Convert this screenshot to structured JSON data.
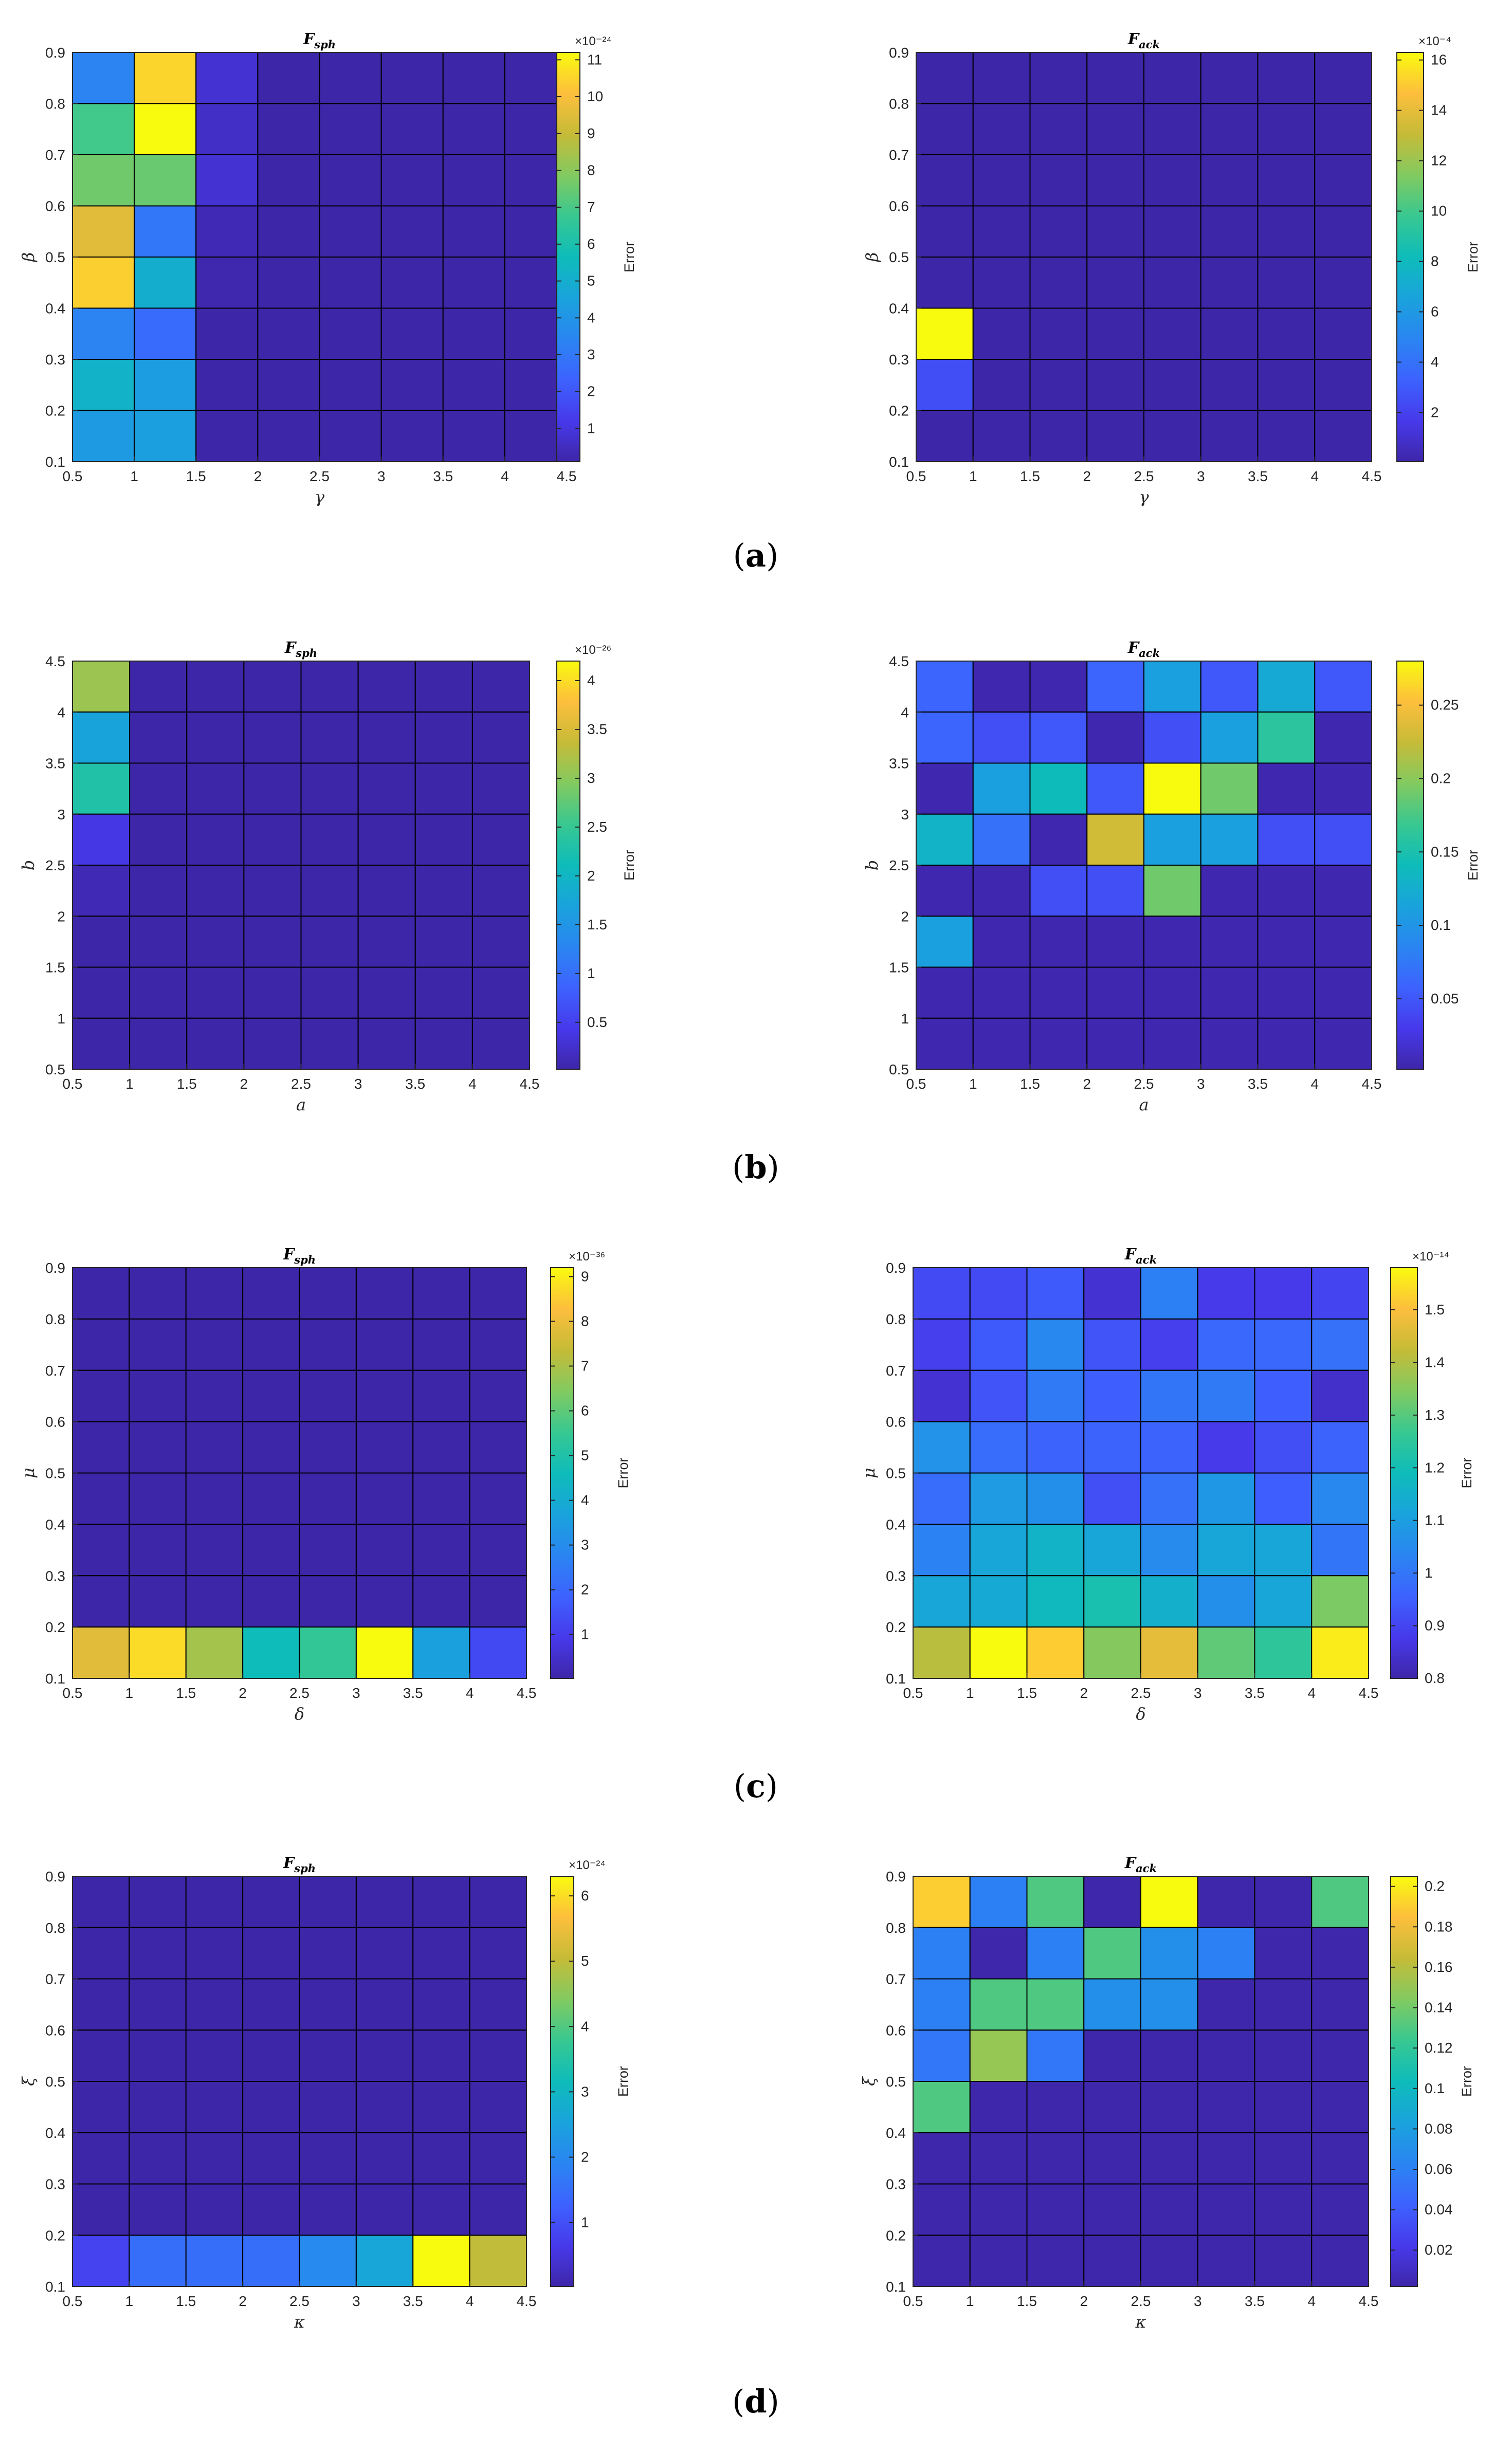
{
  "panels": [
    {
      "label": "(a)",
      "open": "(",
      "letter": "a",
      "close": ")"
    },
    {
      "label": "(b)",
      "open": "(",
      "letter": "b",
      "close": ")"
    },
    {
      "label": "(c)",
      "open": "(",
      "letter": "c",
      "close": ")"
    },
    {
      "label": "(d)",
      "open": "(",
      "letter": "d",
      "close": ")"
    }
  ],
  "colors": {
    "cell_edge": "#000000",
    "axis": "#262626",
    "low": "#3e26a8",
    "high": "#f9fb0e"
  },
  "chart_data": [
    {
      "id": "a-sph",
      "type": "heatmap",
      "title": "F",
      "title_sub": "sph",
      "xlabel": "γ",
      "ylabel": "β",
      "xticks": [
        "0.5",
        "1",
        "1.5",
        "2",
        "2.5",
        "3",
        "3.5",
        "4",
        "4.5"
      ],
      "yticks": [
        "0.1",
        "0.2",
        "0.3",
        "0.4",
        "0.5",
        "0.6",
        "0.7",
        "0.8",
        "0.9"
      ],
      "xlim": [
        0.5,
        4.5
      ],
      "ylim": [
        0.1,
        0.9
      ],
      "colorbar_label": "Error",
      "colorbar_exponent": "×10⁻²⁴",
      "colorbar_range": [
        0.1,
        11.2
      ],
      "colorbar_ticks": [
        "1",
        "2",
        "3",
        "4",
        "5",
        "6",
        "7",
        "8",
        "9",
        "10",
        "11"
      ],
      "colorbar_tick_values": [
        1,
        2,
        3,
        4,
        5,
        6,
        7,
        8,
        9,
        10,
        11
      ],
      "values_top_to_bottom": [
        [
          3.4,
          10.5,
          0.8,
          0.1,
          0.1,
          0.1,
          0.1,
          0.1
        ],
        [
          6.9,
          11.2,
          0.6,
          0.1,
          0.1,
          0.1,
          0.1,
          0.1
        ],
        [
          7.6,
          7.5,
          0.8,
          0.1,
          0.1,
          0.1,
          0.1,
          0.1
        ],
        [
          9.5,
          3.0,
          0.3,
          0.1,
          0.1,
          0.1,
          0.1,
          0.1
        ],
        [
          10.4,
          5.0,
          0.2,
          0.1,
          0.1,
          0.1,
          0.1,
          0.1
        ],
        [
          3.4,
          2.6,
          0.1,
          0.1,
          0.1,
          0.1,
          0.1,
          0.1
        ],
        [
          5.2,
          4.3,
          0.1,
          0.1,
          0.1,
          0.1,
          0.1,
          0.1
        ],
        [
          4.2,
          4.4,
          0.1,
          0.1,
          0.1,
          0.1,
          0.1,
          0.1
        ]
      ]
    },
    {
      "id": "a-ack",
      "type": "heatmap",
      "title": "F",
      "title_sub": "ack",
      "xlabel": "γ",
      "ylabel": "β",
      "xticks": [
        "0.5",
        "1",
        "1.5",
        "2",
        "2.5",
        "3",
        "3.5",
        "4",
        "4.5"
      ],
      "yticks": [
        "0.1",
        "0.2",
        "0.3",
        "0.4",
        "0.5",
        "0.6",
        "0.7",
        "0.8",
        "0.9"
      ],
      "xlim": [
        0.5,
        4.5
      ],
      "ylim": [
        0.1,
        0.9
      ],
      "colorbar_label": "Error",
      "colorbar_exponent": "×10⁻⁴",
      "colorbar_range": [
        0.05,
        16.3
      ],
      "colorbar_ticks": [
        "2",
        "4",
        "6",
        "8",
        "10",
        "12",
        "14",
        "16"
      ],
      "colorbar_tick_values": [
        2,
        4,
        6,
        8,
        10,
        12,
        14,
        16
      ],
      "values_top_to_bottom": [
        [
          0.05,
          0.05,
          0.05,
          0.05,
          0.05,
          0.05,
          0.05,
          0.05
        ],
        [
          0.05,
          0.05,
          0.05,
          0.05,
          0.05,
          0.05,
          0.05,
          0.05
        ],
        [
          0.05,
          0.05,
          0.05,
          0.05,
          0.05,
          0.05,
          0.05,
          0.05
        ],
        [
          0.05,
          0.05,
          0.05,
          0.05,
          0.05,
          0.05,
          0.05,
          0.05
        ],
        [
          0.05,
          0.05,
          0.05,
          0.05,
          0.05,
          0.05,
          0.05,
          0.05
        ],
        [
          16.3,
          0.05,
          0.05,
          0.05,
          0.05,
          0.05,
          0.05,
          0.05
        ],
        [
          2.5,
          0.05,
          0.05,
          0.05,
          0.05,
          0.05,
          0.05,
          0.05
        ],
        [
          0.05,
          0.05,
          0.05,
          0.05,
          0.05,
          0.05,
          0.05,
          0.05
        ]
      ]
    },
    {
      "id": "b-sph",
      "type": "heatmap",
      "title": "F",
      "title_sub": "sph",
      "xlabel": "a",
      "ylabel": "b",
      "xticks": [
        "0.5",
        "1",
        "1.5",
        "2",
        "2.5",
        "3",
        "3.5",
        "4",
        "4.5"
      ],
      "yticks": [
        "0.5",
        "1",
        "1.5",
        "2",
        "2.5",
        "3",
        "3.5",
        "4",
        "4.5"
      ],
      "xlim": [
        0.5,
        4.5
      ],
      "ylim": [
        0.5,
        4.5
      ],
      "colorbar_label": "Error",
      "colorbar_exponent": "×10⁻²⁶",
      "colorbar_range": [
        0.02,
        4.2
      ],
      "colorbar_ticks": [
        "0.5",
        "1",
        "1.5",
        "2",
        "2.5",
        "3",
        "3.5",
        "4"
      ],
      "colorbar_tick_values": [
        0.5,
        1,
        1.5,
        2,
        2.5,
        3,
        3.5,
        4
      ],
      "values_top_to_bottom": [
        [
          3.1,
          0.02,
          0.02,
          0.02,
          0.02,
          0.02,
          0.02,
          0.02
        ],
        [
          1.7,
          0.02,
          0.02,
          0.02,
          0.02,
          0.02,
          0.02,
          0.02
        ],
        [
          2.3,
          0.02,
          0.02,
          0.02,
          0.02,
          0.02,
          0.02,
          0.02
        ],
        [
          0.4,
          0.02,
          0.02,
          0.02,
          0.02,
          0.02,
          0.02,
          0.02
        ],
        [
          0.1,
          0.02,
          0.02,
          0.02,
          0.02,
          0.02,
          0.02,
          0.02
        ],
        [
          0.02,
          0.02,
          0.02,
          0.02,
          0.02,
          0.02,
          0.02,
          0.02
        ],
        [
          0.02,
          0.02,
          0.02,
          0.02,
          0.02,
          0.02,
          0.02,
          0.02
        ],
        [
          0.02,
          0.02,
          0.02,
          0.02,
          0.02,
          0.02,
          0.02,
          0.02
        ]
      ]
    },
    {
      "id": "b-ack",
      "type": "heatmap",
      "title": "F",
      "title_sub": "ack",
      "xlabel": "a",
      "ylabel": "b",
      "xticks": [
        "0.5",
        "1",
        "1.5",
        "2",
        "2.5",
        "3",
        "3.5",
        "4",
        "4.5"
      ],
      "yticks": [
        "0.5",
        "1",
        "1.5",
        "2",
        "2.5",
        "3",
        "3.5",
        "4",
        "4.5"
      ],
      "xlim": [
        0.5,
        4.5
      ],
      "ylim": [
        0.5,
        4.5
      ],
      "colorbar_label": "Error",
      "colorbar_exponent": "",
      "colorbar_range": [
        0.002,
        0.28
      ],
      "colorbar_ticks": [
        "0.05",
        "0.1",
        "0.15",
        "0.2",
        "0.25"
      ],
      "colorbar_tick_values": [
        0.05,
        0.1,
        0.15,
        0.2,
        0.25
      ],
      "values_top_to_bottom": [
        [
          0.06,
          0.005,
          0.005,
          0.06,
          0.11,
          0.05,
          0.12,
          0.05
        ],
        [
          0.06,
          0.045,
          0.05,
          0.005,
          0.045,
          0.11,
          0.16,
          0.005
        ],
        [
          0.005,
          0.11,
          0.14,
          0.05,
          0.28,
          0.19,
          0.005,
          0.005
        ],
        [
          0.13,
          0.07,
          0.005,
          0.23,
          0.11,
          0.11,
          0.045,
          0.045
        ],
        [
          0.005,
          0.005,
          0.045,
          0.045,
          0.19,
          0.005,
          0.005,
          0.005
        ],
        [
          0.11,
          0.005,
          0.005,
          0.005,
          0.005,
          0.005,
          0.005,
          0.005
        ],
        [
          0.005,
          0.005,
          0.005,
          0.005,
          0.005,
          0.005,
          0.005,
          0.005
        ],
        [
          0.005,
          0.005,
          0.005,
          0.005,
          0.005,
          0.005,
          0.005,
          0.005
        ]
      ]
    },
    {
      "id": "c-sph",
      "type": "heatmap",
      "title": "F",
      "title_sub": "sph",
      "xlabel": "δ",
      "ylabel": "μ",
      "xticks": [
        "0.5",
        "1",
        "1.5",
        "2",
        "2.5",
        "3",
        "3.5",
        "4",
        "4.5"
      ],
      "yticks": [
        "0.1",
        "0.2",
        "0.3",
        "0.4",
        "0.5",
        "0.6",
        "0.7",
        "0.8",
        "0.9"
      ],
      "xlim": [
        0.5,
        4.5
      ],
      "ylim": [
        0.1,
        0.9
      ],
      "colorbar_label": "Error",
      "colorbar_exponent": "×10⁻³⁶",
      "colorbar_range": [
        0.02,
        9.2
      ],
      "colorbar_ticks": [
        "1",
        "2",
        "3",
        "4",
        "5",
        "6",
        "7",
        "8",
        "9"
      ],
      "colorbar_tick_values": [
        1,
        2,
        3,
        4,
        5,
        6,
        7,
        8,
        9
      ],
      "values_top_to_bottom": [
        [
          0.02,
          0.02,
          0.02,
          0.02,
          0.02,
          0.02,
          0.02,
          0.02
        ],
        [
          0.02,
          0.02,
          0.02,
          0.02,
          0.02,
          0.02,
          0.02,
          0.02
        ],
        [
          0.02,
          0.02,
          0.02,
          0.02,
          0.02,
          0.02,
          0.02,
          0.02
        ],
        [
          0.02,
          0.02,
          0.02,
          0.02,
          0.02,
          0.02,
          0.02,
          0.02
        ],
        [
          0.02,
          0.02,
          0.02,
          0.02,
          0.02,
          0.02,
          0.02,
          0.02
        ],
        [
          0.02,
          0.02,
          0.02,
          0.02,
          0.02,
          0.02,
          0.02,
          0.02
        ],
        [
          0.02,
          0.02,
          0.02,
          0.02,
          0.02,
          0.02,
          0.02,
          0.02
        ],
        [
          7.8,
          8.7,
          6.9,
          4.6,
          5.4,
          9.2,
          3.6,
          1.3
        ]
      ]
    },
    {
      "id": "c-ack",
      "type": "heatmap",
      "title": "F",
      "title_sub": "ack",
      "xlabel": "δ",
      "ylabel": "μ",
      "xticks": [
        "0.5",
        "1",
        "1.5",
        "2",
        "2.5",
        "3",
        "3.5",
        "4",
        "4.5"
      ],
      "yticks": [
        "0.1",
        "0.2",
        "0.3",
        "0.4",
        "0.5",
        "0.6",
        "0.7",
        "0.8",
        "0.9"
      ],
      "xlim": [
        0.5,
        4.5
      ],
      "ylim": [
        0.1,
        0.9
      ],
      "colorbar_label": "Error",
      "colorbar_exponent": "×10⁻¹⁴",
      "colorbar_range": [
        0.8,
        1.58
      ],
      "colorbar_ticks": [
        "0.8",
        "0.9",
        "1",
        "1.1",
        "1.2",
        "1.3",
        "1.4",
        "1.5"
      ],
      "colorbar_tick_values": [
        0.8,
        0.9,
        1,
        1.1,
        1.2,
        1.3,
        1.4,
        1.5
      ],
      "values_top_to_bottom": [
        [
          0.91,
          0.91,
          0.94,
          0.85,
          1.02,
          0.88,
          0.88,
          0.9
        ],
        [
          0.89,
          0.94,
          1.04,
          0.93,
          0.89,
          0.97,
          0.97,
          0.99
        ],
        [
          0.85,
          0.93,
          1.01,
          0.95,
          1.0,
          1.01,
          0.95,
          0.84
        ],
        [
          1.07,
          0.98,
          0.96,
          0.96,
          0.96,
          0.88,
          0.92,
          0.96
        ],
        [
          0.98,
          1.09,
          1.06,
          0.92,
          0.99,
          1.08,
          0.95,
          1.04
        ],
        [
          1.03,
          1.12,
          1.16,
          1.12,
          1.05,
          1.12,
          1.12,
          1.0
        ],
        [
          1.12,
          1.13,
          1.18,
          1.21,
          1.15,
          1.06,
          1.12,
          1.34
        ],
        [
          1.41,
          1.58,
          1.52,
          1.35,
          1.47,
          1.31,
          1.25,
          1.56
        ]
      ]
    },
    {
      "id": "d-sph",
      "type": "heatmap",
      "title": "F",
      "title_sub": "sph",
      "xlabel": "κ",
      "ylabel": "ξ",
      "xticks": [
        "0.5",
        "1",
        "1.5",
        "2",
        "2.5",
        "3",
        "3.5",
        "4",
        "4.5"
      ],
      "yticks": [
        "0.1",
        "0.2",
        "0.3",
        "0.4",
        "0.5",
        "0.6",
        "0.7",
        "0.8",
        "0.9"
      ],
      "xlim": [
        0.5,
        4.5
      ],
      "ylim": [
        0.1,
        0.9
      ],
      "colorbar_label": "Error",
      "colorbar_exponent": "×10⁻²⁴",
      "colorbar_range": [
        0.02,
        6.3
      ],
      "colorbar_ticks": [
        "1",
        "2",
        "3",
        "4",
        "5",
        "6"
      ],
      "colorbar_tick_values": [
        1,
        2,
        3,
        4,
        5,
        6
      ],
      "values_top_to_bottom": [
        [
          0.02,
          0.02,
          0.02,
          0.02,
          0.02,
          0.02,
          0.02,
          0.02
        ],
        [
          0.02,
          0.02,
          0.02,
          0.02,
          0.02,
          0.02,
          0.02,
          0.02
        ],
        [
          0.02,
          0.02,
          0.02,
          0.02,
          0.02,
          0.02,
          0.02,
          0.02
        ],
        [
          0.02,
          0.02,
          0.02,
          0.02,
          0.02,
          0.02,
          0.02,
          0.02
        ],
        [
          0.02,
          0.02,
          0.02,
          0.02,
          0.02,
          0.02,
          0.02,
          0.02
        ],
        [
          0.02,
          0.02,
          0.02,
          0.02,
          0.02,
          0.02,
          0.02,
          0.02
        ],
        [
          0.02,
          0.02,
          0.02,
          0.02,
          0.02,
          0.02,
          0.02,
          0.02
        ],
        [
          0.8,
          1.5,
          1.5,
          1.5,
          2.0,
          2.6,
          6.3,
          5.0
        ]
      ]
    },
    {
      "id": "d-ack",
      "type": "heatmap",
      "title": "F",
      "title_sub": "ack",
      "xlabel": "κ",
      "ylabel": "ξ",
      "xticks": [
        "0.5",
        "1",
        "1.5",
        "2",
        "2.5",
        "3",
        "3.5",
        "4",
        "4.5"
      ],
      "yticks": [
        "0.1",
        "0.2",
        "0.3",
        "0.4",
        "0.5",
        "0.6",
        "0.7",
        "0.8",
        "0.9"
      ],
      "xlim": [
        0.5,
        4.5
      ],
      "ylim": [
        0.1,
        0.9
      ],
      "colorbar_label": "Error",
      "colorbar_exponent": "",
      "colorbar_range": [
        0.002,
        0.205
      ],
      "colorbar_ticks": [
        "0.02",
        "0.04",
        "0.06",
        "0.08",
        "0.1",
        "0.12",
        "0.14",
        "0.16",
        "0.18",
        "0.2"
      ],
      "colorbar_tick_values": [
        0.02,
        0.04,
        0.06,
        0.08,
        0.1,
        0.12,
        0.14,
        0.16,
        0.18,
        0.2
      ],
      "values_top_to_bottom": [
        [
          0.19,
          0.06,
          0.13,
          0.003,
          0.205,
          0.003,
          0.003,
          0.13
        ],
        [
          0.06,
          0.003,
          0.06,
          0.13,
          0.07,
          0.06,
          0.003,
          0.003
        ],
        [
          0.06,
          0.13,
          0.13,
          0.07,
          0.07,
          0.003,
          0.003,
          0.003
        ],
        [
          0.055,
          0.15,
          0.055,
          0.003,
          0.003,
          0.003,
          0.003,
          0.003
        ],
        [
          0.13,
          0.003,
          0.003,
          0.003,
          0.003,
          0.003,
          0.003,
          0.003
        ],
        [
          0.003,
          0.003,
          0.003,
          0.003,
          0.003,
          0.003,
          0.003,
          0.003
        ],
        [
          0.003,
          0.003,
          0.003,
          0.003,
          0.003,
          0.003,
          0.003,
          0.003
        ],
        [
          0.003,
          0.003,
          0.003,
          0.003,
          0.003,
          0.003,
          0.003,
          0.003
        ]
      ]
    }
  ]
}
